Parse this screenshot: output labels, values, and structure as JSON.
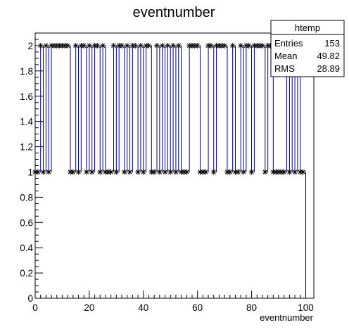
{
  "chart_data": {
    "type": "line",
    "title": "eventnumber",
    "xlabel": "eventnumber",
    "ylabel": "",
    "xlim": [
      0,
      103
    ],
    "ylim": [
      0,
      2.1
    ],
    "x_ticks": [
      "0",
      "20",
      "40",
      "60",
      "80",
      "100"
    ],
    "y_ticks": [
      "0",
      "0.2",
      "0.4",
      "0.6",
      "0.8",
      "1",
      "1.2",
      "1.4",
      "1.6",
      "1.8",
      "2"
    ],
    "grid": false,
    "marker": "star",
    "line_color": "#000080",
    "marker_color": "#000000",
    "series": [
      {
        "x": [
          0,
          1,
          2,
          3,
          4,
          5,
          6,
          7,
          8,
          9,
          10,
          11,
          12,
          13,
          14,
          15,
          16,
          17,
          18,
          19,
          20,
          21,
          22,
          23,
          24,
          25,
          26,
          27,
          28,
          29,
          30,
          31,
          32,
          33,
          34,
          35,
          36,
          37,
          38,
          39,
          40,
          41,
          42,
          43,
          44,
          45,
          46,
          47,
          48,
          49,
          50,
          51,
          52,
          53,
          54,
          55,
          56,
          57,
          58,
          59,
          60,
          61,
          62,
          63,
          64,
          65,
          66,
          67,
          68,
          69,
          70,
          71,
          72,
          73,
          74,
          75,
          76,
          77,
          78,
          79,
          80,
          81,
          82,
          83,
          84,
          85,
          86,
          87,
          88,
          89,
          90,
          91,
          92,
          93,
          94,
          95,
          96,
          97,
          98,
          99,
          100
        ],
        "y": [
          1,
          1,
          2,
          1,
          2,
          1,
          2,
          2,
          2,
          2,
          2,
          2,
          2,
          1,
          1,
          2,
          1,
          2,
          2,
          1,
          2,
          1,
          2,
          2,
          1,
          2,
          1,
          1,
          1,
          2,
          1,
          2,
          2,
          1,
          2,
          1,
          2,
          2,
          1,
          2,
          1,
          2,
          2,
          1,
          1,
          2,
          1,
          2,
          1,
          2,
          1,
          2,
          1,
          2,
          1,
          1,
          1,
          2,
          2,
          2,
          2,
          1,
          1,
          1,
          2,
          2,
          1,
          2,
          2,
          2,
          2,
          1,
          1,
          2,
          1,
          1,
          2,
          1,
          2,
          2,
          1,
          2,
          2,
          2,
          2,
          1,
          2,
          2,
          1,
          1,
          1,
          1,
          1,
          2,
          1,
          2,
          1,
          2,
          1,
          1,
          0
        ]
      }
    ]
  },
  "stats_box": {
    "title": "htemp",
    "rows": [
      {
        "label": "Entries",
        "value": "153"
      },
      {
        "label": "Mean",
        "value": "49.82"
      },
      {
        "label": "RMS",
        "value": "28.89"
      }
    ]
  }
}
